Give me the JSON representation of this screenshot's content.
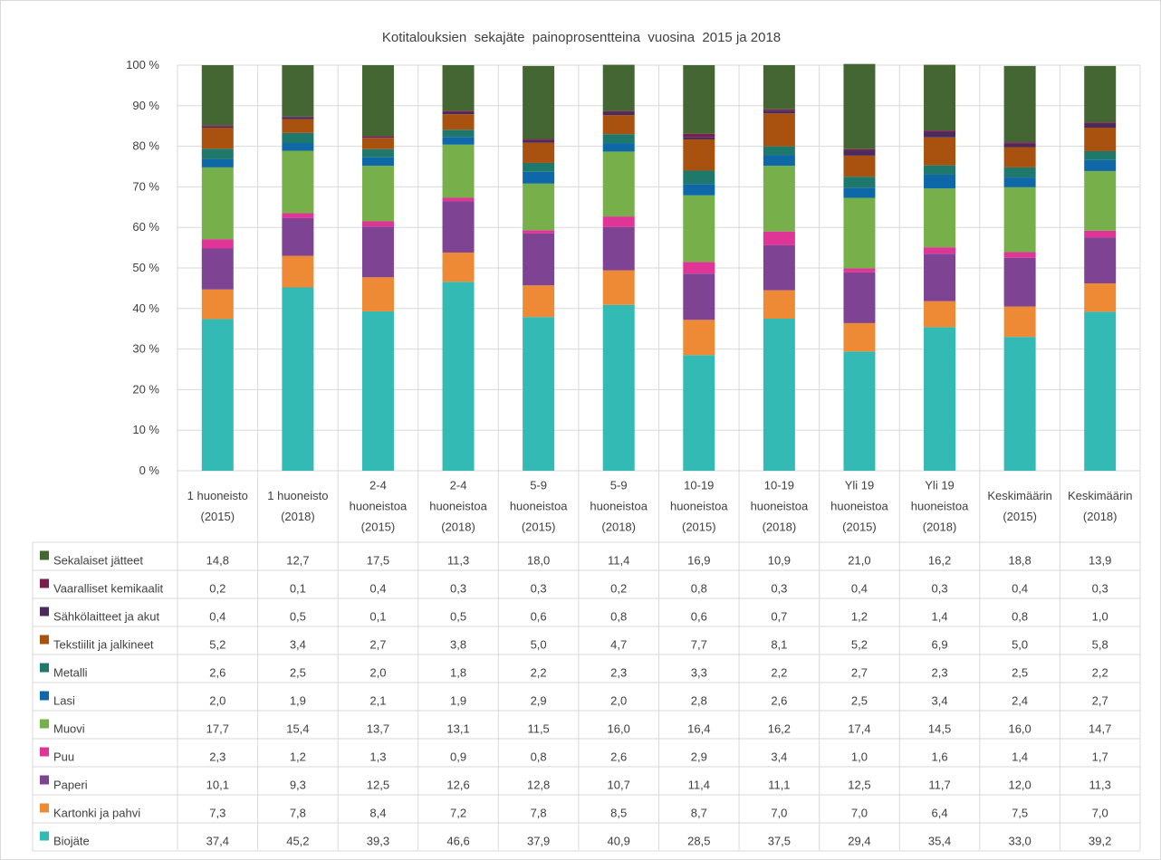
{
  "chart_data": {
    "type": "bar",
    "stacked": true,
    "title": "Kotitalouksien  sekajäte  painoprosentteina  vuosina  2015 ja 2018",
    "ylim": [
      0,
      100
    ],
    "yticks": [
      "0 %",
      "10 %",
      "20 %",
      "30 %",
      "40 %",
      "50 %",
      "60 %",
      "70 %",
      "80 %",
      "90 %",
      "100 %"
    ],
    "grid": true,
    "legend": "data-table",
    "categories": [
      [
        "1 huoneisto",
        "(2015)"
      ],
      [
        "1 huoneisto",
        "(2018)"
      ],
      [
        "2-4",
        "huoneistoa",
        "(2015)"
      ],
      [
        "2-4",
        "huoneistoa",
        "(2018)"
      ],
      [
        "5-9",
        "huoneistoa",
        "(2015)"
      ],
      [
        "5-9",
        "huoneistoa",
        "(2018)"
      ],
      [
        "10-19",
        "huoneistoa",
        "(2015)"
      ],
      [
        "10-19",
        "huoneistoa",
        "(2018)"
      ],
      [
        "Yli 19",
        "huoneistoa",
        "(2015)"
      ],
      [
        "Yli 19",
        "huoneistoa",
        "(2018)"
      ],
      [
        "Keskimäärin",
        "(2015)"
      ],
      [
        "Keskimäärin",
        "(2018)"
      ]
    ],
    "series": [
      {
        "name": "Biojäte",
        "color": "#33bab5",
        "values": [
          37.4,
          45.2,
          39.3,
          46.6,
          37.9,
          40.9,
          28.5,
          37.5,
          29.4,
          35.4,
          33.0,
          39.2
        ]
      },
      {
        "name": "Kartonki ja pahvi",
        "color": "#ee8a35",
        "values": [
          7.3,
          7.8,
          8.4,
          7.2,
          7.8,
          8.5,
          8.7,
          7.0,
          7.0,
          6.4,
          7.5,
          7.0
        ]
      },
      {
        "name": "Paperi",
        "color": "#7f4394",
        "values": [
          10.1,
          9.3,
          12.5,
          12.6,
          12.8,
          10.7,
          11.4,
          11.1,
          12.5,
          11.7,
          12.0,
          11.3
        ]
      },
      {
        "name": "Puu",
        "color": "#de3596",
        "values": [
          2.3,
          1.2,
          1.3,
          0.9,
          0.8,
          2.6,
          2.9,
          3.4,
          1.0,
          1.6,
          1.4,
          1.7
        ]
      },
      {
        "name": "Muovi",
        "color": "#77b04a",
        "values": [
          17.7,
          15.4,
          13.7,
          13.1,
          11.5,
          16.0,
          16.4,
          16.2,
          17.4,
          14.5,
          16.0,
          14.7
        ]
      },
      {
        "name": "Lasi",
        "color": "#0e68a7",
        "values": [
          2.0,
          1.9,
          2.1,
          1.9,
          2.9,
          2.0,
          2.8,
          2.6,
          2.5,
          3.4,
          2.4,
          2.7
        ]
      },
      {
        "name": "Metalli",
        "color": "#1f786c",
        "values": [
          2.6,
          2.5,
          2.0,
          1.8,
          2.2,
          2.3,
          3.3,
          2.2,
          2.7,
          2.3,
          2.5,
          2.2
        ]
      },
      {
        "name": "Tekstiilit ja jalkineet",
        "color": "#a9520f",
        "values": [
          5.2,
          3.4,
          2.7,
          3.8,
          5.0,
          4.7,
          7.7,
          8.1,
          5.2,
          6.9,
          5.0,
          5.8
        ]
      },
      {
        "name": "Sähkölaitteet ja akut",
        "color": "#4b2b5e",
        "values": [
          0.4,
          0.5,
          0.1,
          0.5,
          0.6,
          0.8,
          0.6,
          0.7,
          1.2,
          1.4,
          0.8,
          1.0
        ]
      },
      {
        "name": "Vaaralliset kemikaalit",
        "color": "#7a1e4e",
        "values": [
          0.2,
          0.1,
          0.4,
          0.3,
          0.3,
          0.2,
          0.8,
          0.3,
          0.4,
          0.3,
          0.4,
          0.3
        ]
      },
      {
        "name": "Sekalaiset jätteet",
        "color": "#446633",
        "values": [
          14.8,
          12.7,
          17.5,
          11.3,
          18.0,
          11.4,
          16.9,
          10.9,
          21.0,
          16.2,
          18.8,
          13.9
        ]
      }
    ]
  }
}
